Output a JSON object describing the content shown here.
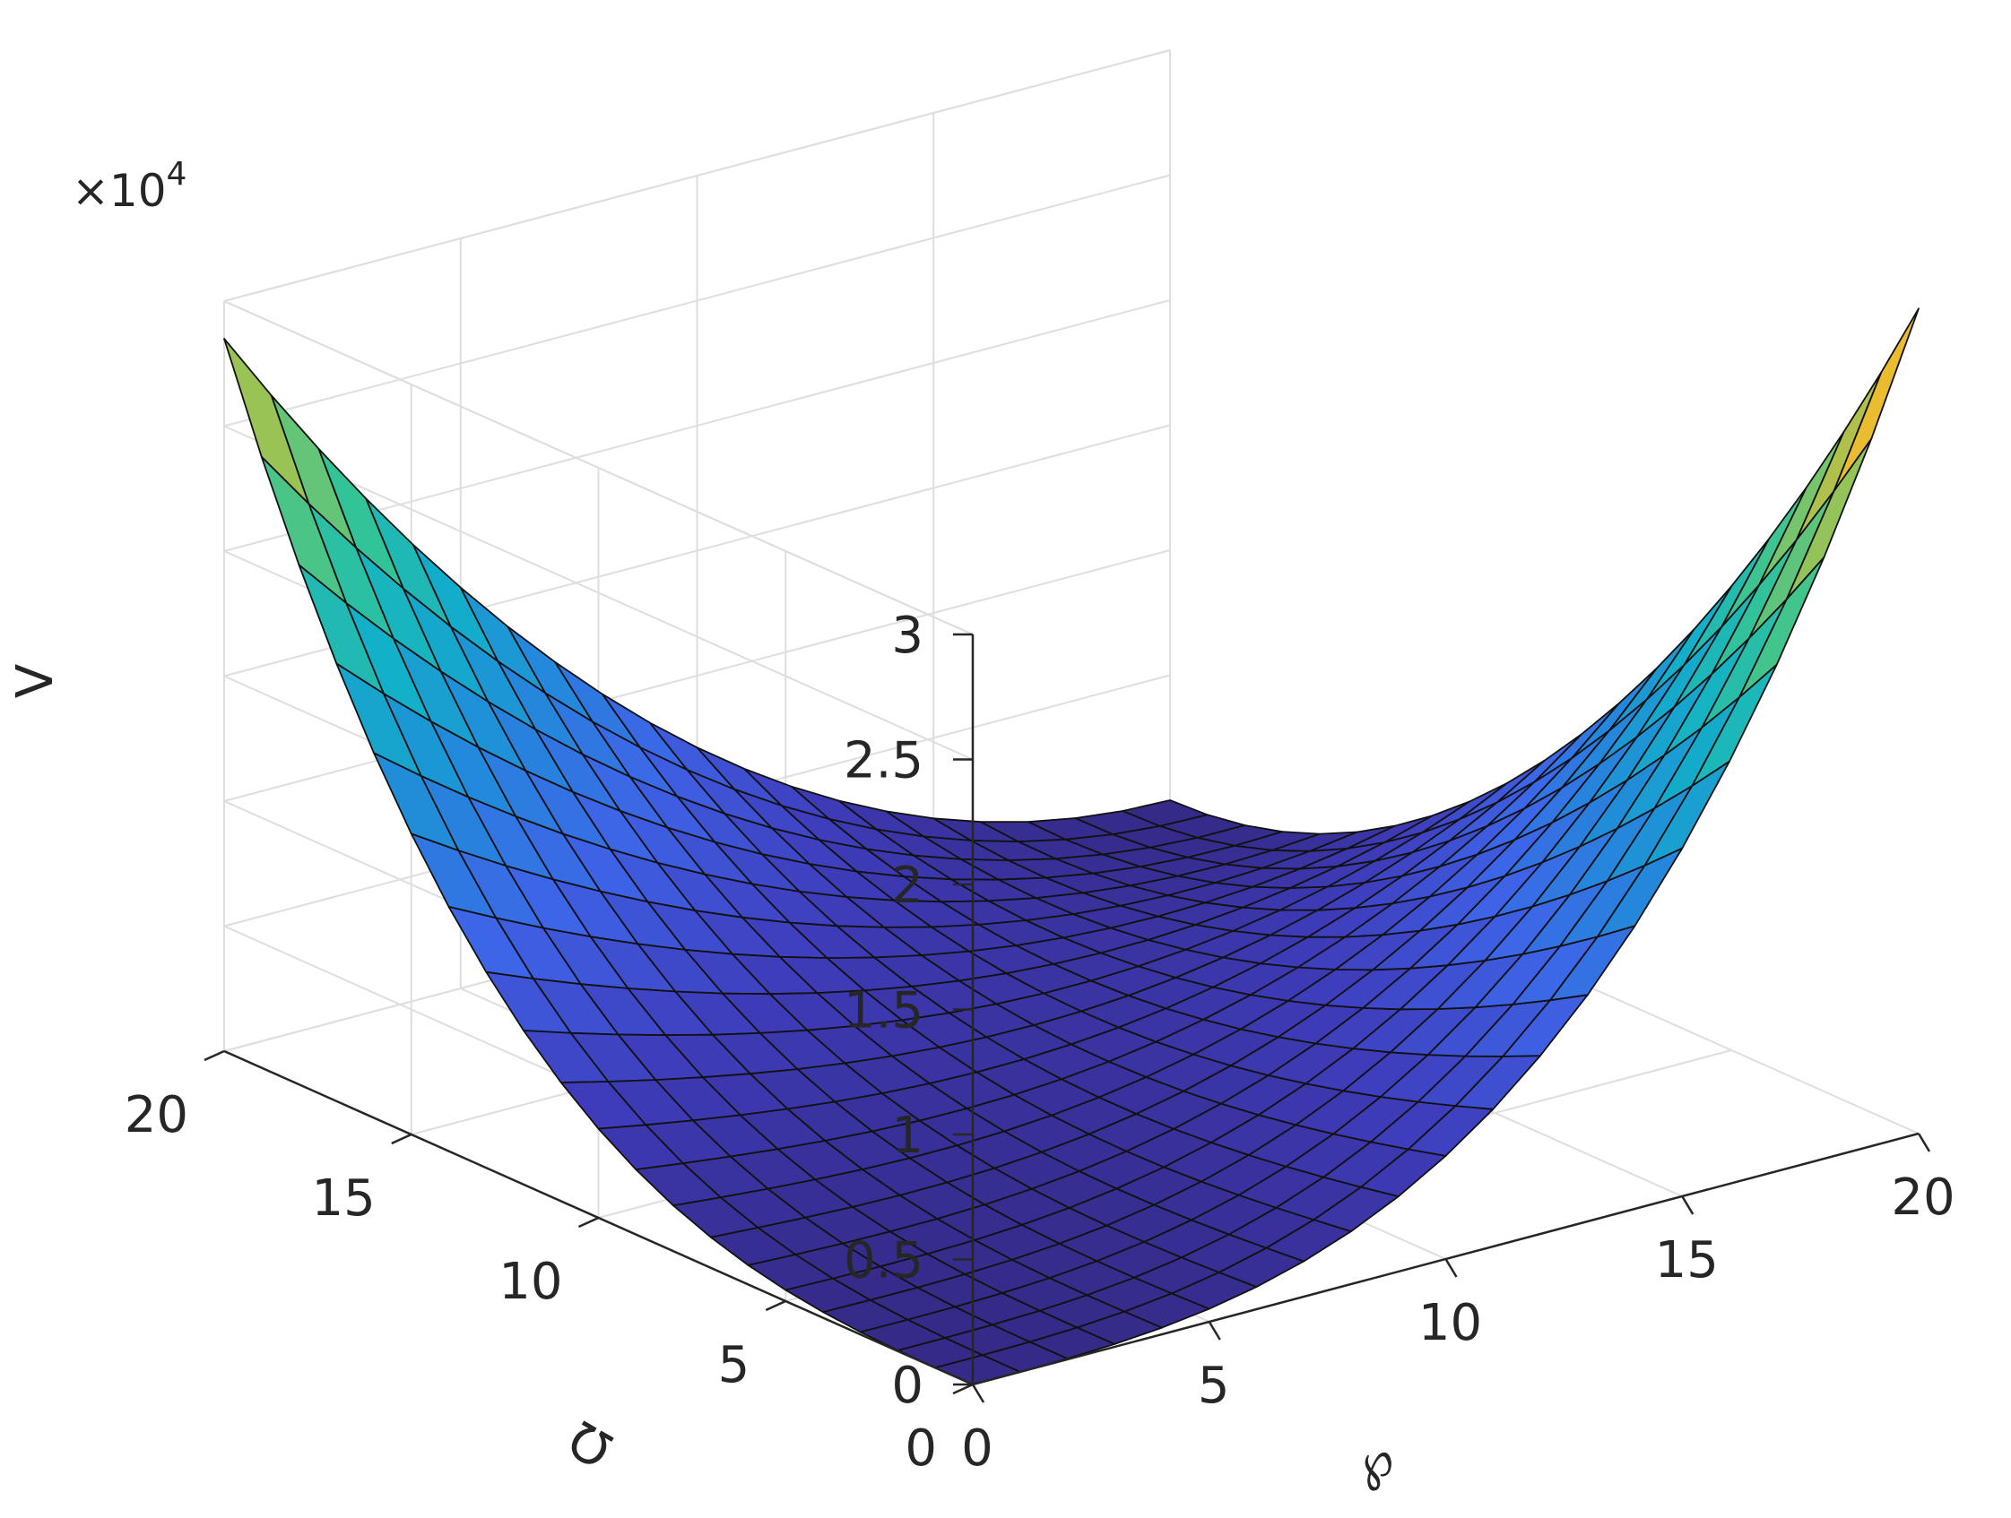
{
  "chart_data": {
    "type": "surface",
    "title": "",
    "xlabel": "℘",
    "ylabel": "Ω",
    "zlabel": "V",
    "xlim": [
      0,
      20
    ],
    "ylim": [
      0,
      20
    ],
    "zlim": [
      0,
      30000
    ],
    "z_exponent_label": "×10",
    "z_exponent_power": "4",
    "x_ticks": [
      {
        "value": 0,
        "label": "0"
      },
      {
        "value": 5,
        "label": "5"
      },
      {
        "value": 10,
        "label": "10"
      },
      {
        "value": 15,
        "label": "15"
      },
      {
        "value": 20,
        "label": "20"
      }
    ],
    "y_ticks": [
      {
        "value": 0,
        "label": "0"
      },
      {
        "value": 5,
        "label": "5"
      },
      {
        "value": 10,
        "label": "10"
      },
      {
        "value": 15,
        "label": "15"
      },
      {
        "value": 20,
        "label": "20"
      }
    ],
    "z_ticks": [
      {
        "value": 0,
        "label": "0"
      },
      {
        "value": 5000,
        "label": "0.5"
      },
      {
        "value": 10000,
        "label": "1"
      },
      {
        "value": 15000,
        "label": "1.5"
      },
      {
        "value": 20000,
        "label": "2"
      },
      {
        "value": 25000,
        "label": "2.5"
      },
      {
        "value": 30000,
        "label": "3"
      }
    ],
    "grid": true,
    "colormap": "parula",
    "grid_range": [
      0,
      20
    ],
    "grid_steps": 20,
    "surface_model": {
      "description_values": "V(℘,Ω) ≈ 28500·(Ω/20)^3·(1−℘/20)^2 + 33000·(℘/20)^3·(1−Ω/20)^2",
      "peak_at_x0_y20": 28500,
      "peak_at_x20_y0": 33000
    }
  }
}
